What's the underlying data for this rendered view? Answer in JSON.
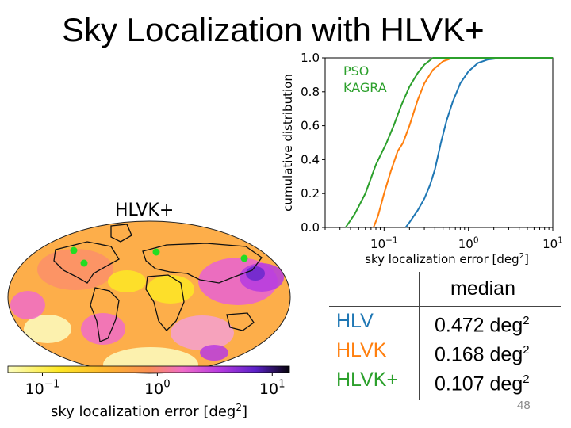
{
  "title": "Sky Localization with HLVK+",
  "page_number": "48",
  "table": {
    "header": "median",
    "rows": [
      {
        "name": "HLV",
        "value": "0.472 deg",
        "sup": "2",
        "color": "#1f77b4"
      },
      {
        "name": "HLVK",
        "value": "0.168 deg",
        "sup": "2",
        "color": "#ff7f0e"
      },
      {
        "name": "HLVK+",
        "value": "0.107 deg",
        "sup": "2",
        "color": "#2ca02c"
      }
    ]
  },
  "map": {
    "title": "HLVK+",
    "colorbar_label": "sky localization error [deg",
    "colorbar_label_sup": "2",
    "colorbar_label_end": "]",
    "colorbar_ticks": [
      {
        "value": 0.1,
        "base": "10",
        "exp": "−1"
      },
      {
        "value": 1,
        "base": "10",
        "exp": "0"
      },
      {
        "value": 10,
        "base": "10",
        "exp": "1"
      }
    ],
    "detector_color": "#22dd22"
  },
  "chart_data": {
    "type": "line",
    "annotation": "PSO\nKAGRA",
    "annotation_color": "#2ca02c",
    "xlabel": "sky localization error [deg",
    "xlabel_sup": "2",
    "xlabel_end": "]",
    "ylabel": "cumulative distribution",
    "xscale": "log",
    "xlim": [
      0.02,
      10
    ],
    "ylim": [
      0,
      1
    ],
    "x_ticks": [
      {
        "value": 0.1,
        "base": "10",
        "exp": "−1"
      },
      {
        "value": 1,
        "base": "10",
        "exp": "0"
      },
      {
        "value": 10,
        "base": "10",
        "exp": "1"
      }
    ],
    "y_ticks": [
      "0.0",
      "0.2",
      "0.4",
      "0.6",
      "0.8",
      "1.0"
    ],
    "series": [
      {
        "name": "HLV",
        "color": "#1f77b4",
        "points": [
          [
            0.18,
            0.0
          ],
          [
            0.2,
            0.03
          ],
          [
            0.25,
            0.1
          ],
          [
            0.3,
            0.17
          ],
          [
            0.35,
            0.25
          ],
          [
            0.4,
            0.34
          ],
          [
            0.472,
            0.5
          ],
          [
            0.55,
            0.63
          ],
          [
            0.65,
            0.74
          ],
          [
            0.8,
            0.85
          ],
          [
            1.0,
            0.92
          ],
          [
            1.3,
            0.97
          ],
          [
            1.7,
            0.99
          ],
          [
            2.5,
            1.0
          ],
          [
            10,
            1.0
          ]
        ]
      },
      {
        "name": "HLVK",
        "color": "#ff7f0e",
        "points": [
          [
            0.075,
            0.0
          ],
          [
            0.085,
            0.07
          ],
          [
            0.1,
            0.2
          ],
          [
            0.12,
            0.33
          ],
          [
            0.145,
            0.45
          ],
          [
            0.168,
            0.5
          ],
          [
            0.2,
            0.6
          ],
          [
            0.25,
            0.75
          ],
          [
            0.3,
            0.85
          ],
          [
            0.38,
            0.93
          ],
          [
            0.5,
            0.98
          ],
          [
            0.65,
            1.0
          ],
          [
            10,
            1.0
          ]
        ]
      },
      {
        "name": "HLVK+",
        "color": "#2ca02c",
        "points": [
          [
            0.035,
            0.0
          ],
          [
            0.045,
            0.08
          ],
          [
            0.06,
            0.2
          ],
          [
            0.08,
            0.37
          ],
          [
            0.107,
            0.5
          ],
          [
            0.13,
            0.6
          ],
          [
            0.16,
            0.72
          ],
          [
            0.2,
            0.83
          ],
          [
            0.25,
            0.91
          ],
          [
            0.3,
            0.96
          ],
          [
            0.38,
            1.0
          ],
          [
            10,
            1.0
          ]
        ]
      }
    ]
  }
}
